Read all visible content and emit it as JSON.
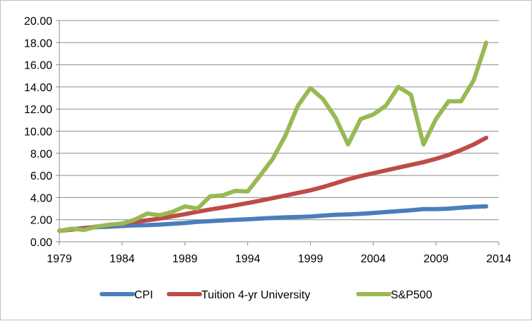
{
  "chart_data": {
    "type": "line",
    "title": "",
    "xlabel": "",
    "ylabel": "",
    "xlim": [
      1979,
      2014
    ],
    "ylim": [
      0,
      20
    ],
    "x_ticks": [
      1979,
      1984,
      1989,
      1994,
      1999,
      2004,
      2009,
      2014
    ],
    "x_tick_labels": [
      "1979",
      "1984",
      "1989",
      "1994",
      "1999",
      "2004",
      "2009",
      "2014"
    ],
    "y_ticks": [
      0,
      2,
      4,
      6,
      8,
      10,
      12,
      14,
      16,
      18,
      20
    ],
    "y_tick_labels": [
      "0.00",
      "2.00",
      "4.00",
      "6.00",
      "8.00",
      "10.00",
      "12.00",
      "14.00",
      "16.00",
      "18.00",
      "20.00"
    ],
    "grid": "horizontal",
    "legend": "bottom",
    "x": [
      1979,
      1980,
      1981,
      1982,
      1983,
      1984,
      1985,
      1986,
      1987,
      1988,
      1989,
      1990,
      1991,
      1992,
      1993,
      1994,
      1995,
      1996,
      1997,
      1998,
      1999,
      2000,
      2001,
      2002,
      2003,
      2004,
      2005,
      2006,
      2007,
      2008,
      2009,
      2010,
      2011,
      2012,
      2013
    ],
    "series": [
      {
        "name": "CPI",
        "color": "#4a7ebb",
        "values": [
          1.0,
          1.13,
          1.25,
          1.33,
          1.37,
          1.43,
          1.48,
          1.51,
          1.56,
          1.63,
          1.7,
          1.8,
          1.87,
          1.93,
          1.99,
          2.04,
          2.1,
          2.16,
          2.21,
          2.24,
          2.29,
          2.37,
          2.44,
          2.48,
          2.53,
          2.6,
          2.69,
          2.77,
          2.85,
          2.96,
          2.95,
          3.0,
          3.09,
          3.16,
          3.2
        ]
      },
      {
        "name": "Tuition 4-yr University",
        "color": "#be4b48",
        "values": [
          1.0,
          1.1,
          1.22,
          1.38,
          1.52,
          1.65,
          1.8,
          1.95,
          2.1,
          2.3,
          2.5,
          2.72,
          2.92,
          3.1,
          3.3,
          3.5,
          3.72,
          3.95,
          4.18,
          4.42,
          4.65,
          4.95,
          5.3,
          5.65,
          5.95,
          6.2,
          6.45,
          6.7,
          6.95,
          7.2,
          7.5,
          7.85,
          8.3,
          8.8,
          9.4
        ]
      },
      {
        "name": "S&P500",
        "color": "#98b954",
        "values": [
          1.0,
          1.18,
          1.08,
          1.38,
          1.55,
          1.65,
          2.0,
          2.55,
          2.4,
          2.7,
          3.2,
          3.0,
          4.1,
          4.2,
          4.6,
          4.55,
          6.0,
          7.5,
          9.6,
          12.3,
          13.9,
          12.9,
          11.2,
          8.8,
          11.1,
          11.5,
          12.3,
          14.0,
          13.3,
          8.8,
          11.1,
          12.7,
          12.7,
          14.6,
          18.0
        ]
      }
    ]
  }
}
